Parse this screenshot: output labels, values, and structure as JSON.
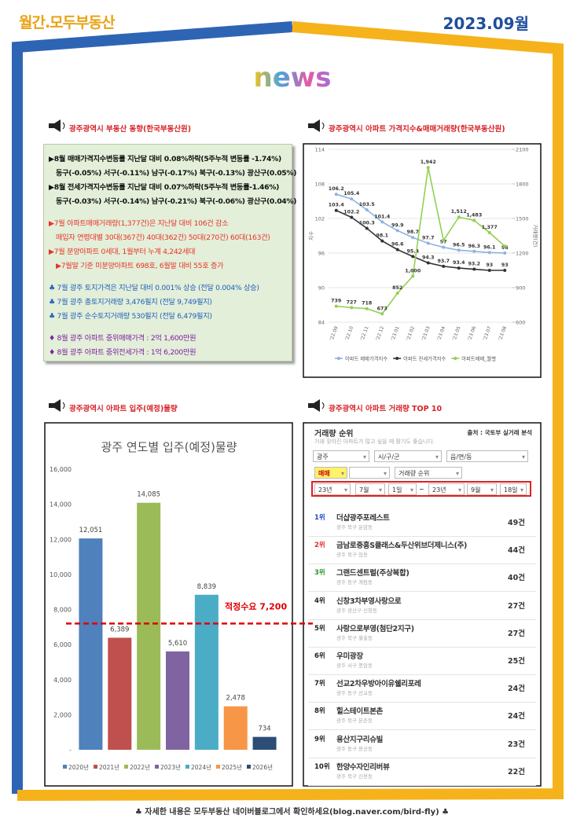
{
  "header": {
    "brand": "월간.모두부동산",
    "issue": "2023.09월",
    "logo": "news"
  },
  "summary": {
    "heading": "광주광역시 부동산 동향(한국부동산원)",
    "groups": [
      {
        "color": "#111111",
        "lines": [
          "▶8월 매매가격지수변동률 지난달 대비 0.08%하락(5주누적 변동률 -1.74%)",
          "동구(-0.05%) 서구(-0.11%) 남구(-0.17%) 북구(-0.13%) 광산구(0.05%)",
          "▶8월 전세가격지수변동률 지난달 대비 0.07%하락(5주누적 변동률-1.46%)",
          "동구(-0.03%) 서구(-0.14%) 남구(-0.21%) 북구(-0.06%) 광산구(0.04%)"
        ]
      },
      {
        "color": "#e8322b",
        "lines": [
          "▶7월 아파트매매거래량(1,377건)은 지난달 대비 106건 감소",
          "매입자 연령대별 30대(367건) 40대(362건) 50대(270건) 60대(163건)",
          "▶7월 분양아파트 0세대, 1월부터 누계 4,242세대",
          "▶7월말 기준 미분양아파트 698호, 6월말 대비 55호 증가"
        ]
      },
      {
        "color": "#1f5fbf",
        "lines": [
          "♣ 7월 광주 토지가격은 지난달 대비 0.001% 상승 (전달 0.004% 상승)",
          "♣ 7월 광주 총토지거래량 3,476필지 (전달 9,749필지)",
          "♣ 7월 광주 순수토지거래량 530필지 (전달 6,479필지)"
        ]
      },
      {
        "color": "#7b1fa2",
        "lines": [
          "♦ 8월 광주 아파트 중위매매가격 : 2억 1,600만원",
          "♦ 8월 광주 아파트 중위전세가격 : 1억 6,200만원"
        ]
      }
    ]
  },
  "chart_data": [
    {
      "type": "line",
      "title": "광주광역시 아파트 가격지수&매매거래량(한국부동산원)",
      "ylabel": "지수",
      "y2label": "거래량(건)",
      "categories": [
        "'22.09",
        "'22.10",
        "'22.11",
        "'22.12",
        "'23.01",
        "'23.02",
        "'23.03",
        "'23.04",
        "'23.05",
        "'23.06",
        "'23.07",
        "'23.08"
      ],
      "ylim": [
        84,
        114
      ],
      "yticks": [
        84,
        90,
        96,
        102,
        108,
        114
      ],
      "y2lim": [
        600,
        2100
      ],
      "y2ticks": [
        600,
        900,
        1200,
        1500,
        1800,
        2100
      ],
      "grid": true,
      "legend": "bottom",
      "series": [
        {
          "name": "아파트 매매가격지수",
          "color": "#8db3e2",
          "values": [
            106.2,
            105.4,
            103.5,
            101.4,
            99.9,
            98.7,
            97.7,
            97,
            96.5,
            96.3,
            96.1,
            96
          ]
        },
        {
          "name": "아파트 전세가격지수",
          "color": "#333333",
          "values": [
            103.4,
            102.2,
            100.3,
            98.1,
            96.6,
            95.4,
            94.3,
            93.7,
            93.4,
            93.2,
            93,
            93
          ]
        },
        {
          "name": "아파트매매_월별",
          "color": "#92d050",
          "axis": "y2",
          "values": [
            739,
            727,
            718,
            673,
            852,
            1000,
            1942,
            1310,
            1512,
            1483,
            1377,
            1260
          ],
          "value_labels": [
            "739",
            "727",
            "718",
            "673",
            "852",
            "1,000",
            "1,942",
            null,
            "1,512",
            "1,483",
            "1,377",
            null
          ]
        }
      ]
    },
    {
      "type": "bar",
      "heading": "광주광역시 아파트 입주(예정)물량",
      "title": "광주 연도별 입주(예정)물량",
      "categories": [
        "2020년",
        "2021년",
        "2022년",
        "2023년",
        "2024년",
        "2025년",
        "2026년"
      ],
      "values": [
        12051,
        6389,
        14085,
        5610,
        8839,
        2478,
        734
      ],
      "value_labels": [
        "12,051",
        "6,389",
        "14,085",
        "5,610",
        "8,839",
        "2,478",
        "734"
      ],
      "colors": [
        "#4f81bd",
        "#c0504d",
        "#9bbb59",
        "#8064a2",
        "#4bacc6",
        "#f79646",
        "#2c4d75"
      ],
      "ylim": [
        0,
        16000
      ],
      "yticks": [
        {
          "value": 0,
          "label": "-"
        },
        {
          "value": 2000,
          "label": "2,000"
        },
        {
          "value": 4000,
          "label": "4,000"
        },
        {
          "value": 6000,
          "label": "6,000"
        },
        {
          "value": 8000,
          "label": "8,000"
        },
        {
          "value": 10000,
          "label": "10,000"
        },
        {
          "value": 12000,
          "label": "12,000"
        },
        {
          "value": 14000,
          "label": "14,000"
        },
        {
          "value": 16000,
          "label": "16,000"
        }
      ],
      "threshold": {
        "value": 7200,
        "label": "적정수요 7,200",
        "color": "#e00000"
      },
      "legend": "bottom"
    }
  ],
  "top10": {
    "heading": "광주광역시 아파트 거래량 TOP 10",
    "panel_title": "거래량 순위",
    "source": "출처 : 국토부 실거래 분석",
    "caption": "거래 잦아진 아파트가 많고 싶을 때 활기도 좋습니다.",
    "filters": [
      "광주",
      "시/구/군",
      "읍/면/동",
      "매매",
      "거래량 순위"
    ],
    "date_filters": [
      "23년",
      "7월",
      "1일",
      "~",
      "23년",
      "9월",
      "18일"
    ],
    "rows": [
      {
        "rank": "1위",
        "name": "더샵광주포레스트",
        "location": "광주 북구 운암동",
        "count": "49건"
      },
      {
        "rank": "2위",
        "name": "금남로중흥S클래스&두산위브더제니스(주)",
        "location": "광주 북구 임동",
        "count": "44건"
      },
      {
        "rank": "3위",
        "name": "그랜드센트럴(주상복합)",
        "location": "광주 동구 계림동",
        "count": "40건"
      },
      {
        "rank": "4위",
        "name": "신창3차부영사랑으로",
        "location": "광주 광산구 신창동",
        "count": "27건"
      },
      {
        "rank": "5위",
        "name": "사랑으로부영(첨단2지구)",
        "location": "광주 북구 월출동",
        "count": "27건"
      },
      {
        "rank": "6위",
        "name": "우미광장",
        "location": "광주 서구 풍암동",
        "count": "25건"
      },
      {
        "rank": "7위",
        "name": "선교2차우방아이유쉘리포레",
        "location": "광주 동구 선교동",
        "count": "24건"
      },
      {
        "rank": "8위",
        "name": "힐스테이트본촌",
        "location": "광주 북구 본촌동",
        "count": "24건"
      },
      {
        "rank": "9위",
        "name": "용산지구리슈빌",
        "location": "광주 동구 용산동",
        "count": "23건"
      },
      {
        "rank": "10위",
        "name": "한양수자인리버뷰",
        "location": "광주 북구 신용동",
        "count": "22건"
      }
    ]
  },
  "footer": "♣ 자세한 내용은 모두부동산 네이버블로그에서 확인하세요(blog.naver.com/bird-fly) ♣"
}
